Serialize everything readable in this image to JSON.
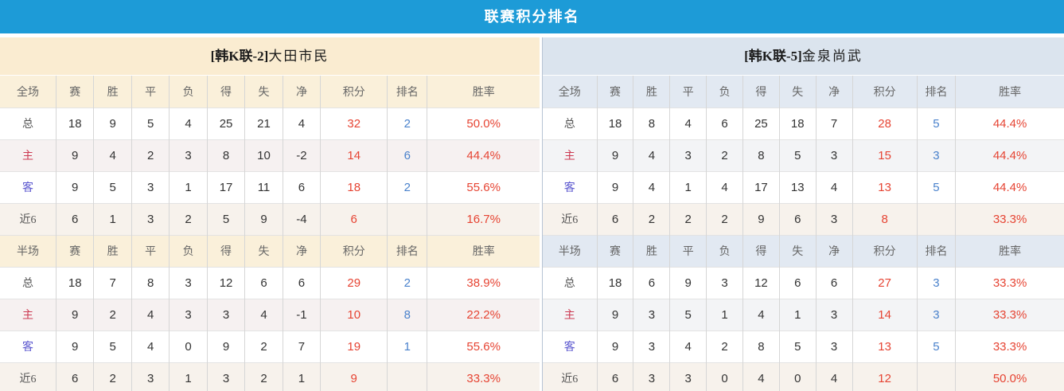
{
  "title": "联赛积分排名",
  "colors": {
    "title_bar_bg": "#1d9bd7",
    "left_team_header_bg": "#faecd1",
    "left_section_header_bg": "#faf0da",
    "right_team_header_bg": "#dbe4ee",
    "right_section_header_bg": "#e2e9f2",
    "points_color": "#e64433",
    "rank_color": "#4a82cc",
    "home_label_color": "#cc3a52",
    "away_label_color": "#5b57cf"
  },
  "panels": {
    "left": {
      "team_prefix": "[韩K联-2]",
      "team_name": "大田市民",
      "rows": [
        {
          "type": "head",
          "cells": [
            "全场",
            "赛",
            "胜",
            "平",
            "负",
            "得",
            "失",
            "净",
            "积分",
            "排名",
            "胜率"
          ]
        },
        {
          "type": "total",
          "cells": [
            "总",
            "18",
            "9",
            "5",
            "4",
            "25",
            "21",
            "4",
            "32",
            "2",
            "50.0%"
          ]
        },
        {
          "type": "home",
          "cells": [
            "主",
            "9",
            "4",
            "2",
            "3",
            "8",
            "10",
            "-2",
            "14",
            "6",
            "44.4%"
          ]
        },
        {
          "type": "away",
          "cells": [
            "客",
            "9",
            "5",
            "3",
            "1",
            "17",
            "11",
            "6",
            "18",
            "2",
            "55.6%"
          ]
        },
        {
          "type": "recent",
          "cells": [
            "近6",
            "6",
            "1",
            "3",
            "2",
            "5",
            "9",
            "-4",
            "6",
            "",
            "16.7%"
          ]
        },
        {
          "type": "head",
          "cells": [
            "半场",
            "赛",
            "胜",
            "平",
            "负",
            "得",
            "失",
            "净",
            "积分",
            "排名",
            "胜率"
          ]
        },
        {
          "type": "total",
          "cells": [
            "总",
            "18",
            "7",
            "8",
            "3",
            "12",
            "6",
            "6",
            "29",
            "2",
            "38.9%"
          ]
        },
        {
          "type": "home",
          "cells": [
            "主",
            "9",
            "2",
            "4",
            "3",
            "3",
            "4",
            "-1",
            "10",
            "8",
            "22.2%"
          ]
        },
        {
          "type": "away",
          "cells": [
            "客",
            "9",
            "5",
            "4",
            "0",
            "9",
            "2",
            "7",
            "19",
            "1",
            "55.6%"
          ]
        },
        {
          "type": "recent",
          "cells": [
            "近6",
            "6",
            "2",
            "3",
            "1",
            "3",
            "2",
            "1",
            "9",
            "",
            "33.3%"
          ]
        }
      ]
    },
    "right": {
      "team_prefix": "[韩K联-5]",
      "team_name": "金泉尚武",
      "rows": [
        {
          "type": "head",
          "cells": [
            "全场",
            "赛",
            "胜",
            "平",
            "负",
            "得",
            "失",
            "净",
            "积分",
            "排名",
            "胜率"
          ]
        },
        {
          "type": "total",
          "cells": [
            "总",
            "18",
            "8",
            "4",
            "6",
            "25",
            "18",
            "7",
            "28",
            "5",
            "44.4%"
          ]
        },
        {
          "type": "home",
          "cells": [
            "主",
            "9",
            "4",
            "3",
            "2",
            "8",
            "5",
            "3",
            "15",
            "3",
            "44.4%"
          ]
        },
        {
          "type": "away",
          "cells": [
            "客",
            "9",
            "4",
            "1",
            "4",
            "17",
            "13",
            "4",
            "13",
            "5",
            "44.4%"
          ]
        },
        {
          "type": "recent",
          "cells": [
            "近6",
            "6",
            "2",
            "2",
            "2",
            "9",
            "6",
            "3",
            "8",
            "",
            "33.3%"
          ]
        },
        {
          "type": "head",
          "cells": [
            "半场",
            "赛",
            "胜",
            "平",
            "负",
            "得",
            "失",
            "净",
            "积分",
            "排名",
            "胜率"
          ]
        },
        {
          "type": "total",
          "cells": [
            "总",
            "18",
            "6",
            "9",
            "3",
            "12",
            "6",
            "6",
            "27",
            "3",
            "33.3%"
          ]
        },
        {
          "type": "home",
          "cells": [
            "主",
            "9",
            "3",
            "5",
            "1",
            "4",
            "1",
            "3",
            "14",
            "3",
            "33.3%"
          ]
        },
        {
          "type": "away",
          "cells": [
            "客",
            "9",
            "3",
            "4",
            "2",
            "8",
            "5",
            "3",
            "13",
            "5",
            "33.3%"
          ]
        },
        {
          "type": "recent",
          "cells": [
            "近6",
            "6",
            "3",
            "3",
            "0",
            "4",
            "0",
            "4",
            "12",
            "",
            "50.0%"
          ]
        }
      ]
    }
  }
}
